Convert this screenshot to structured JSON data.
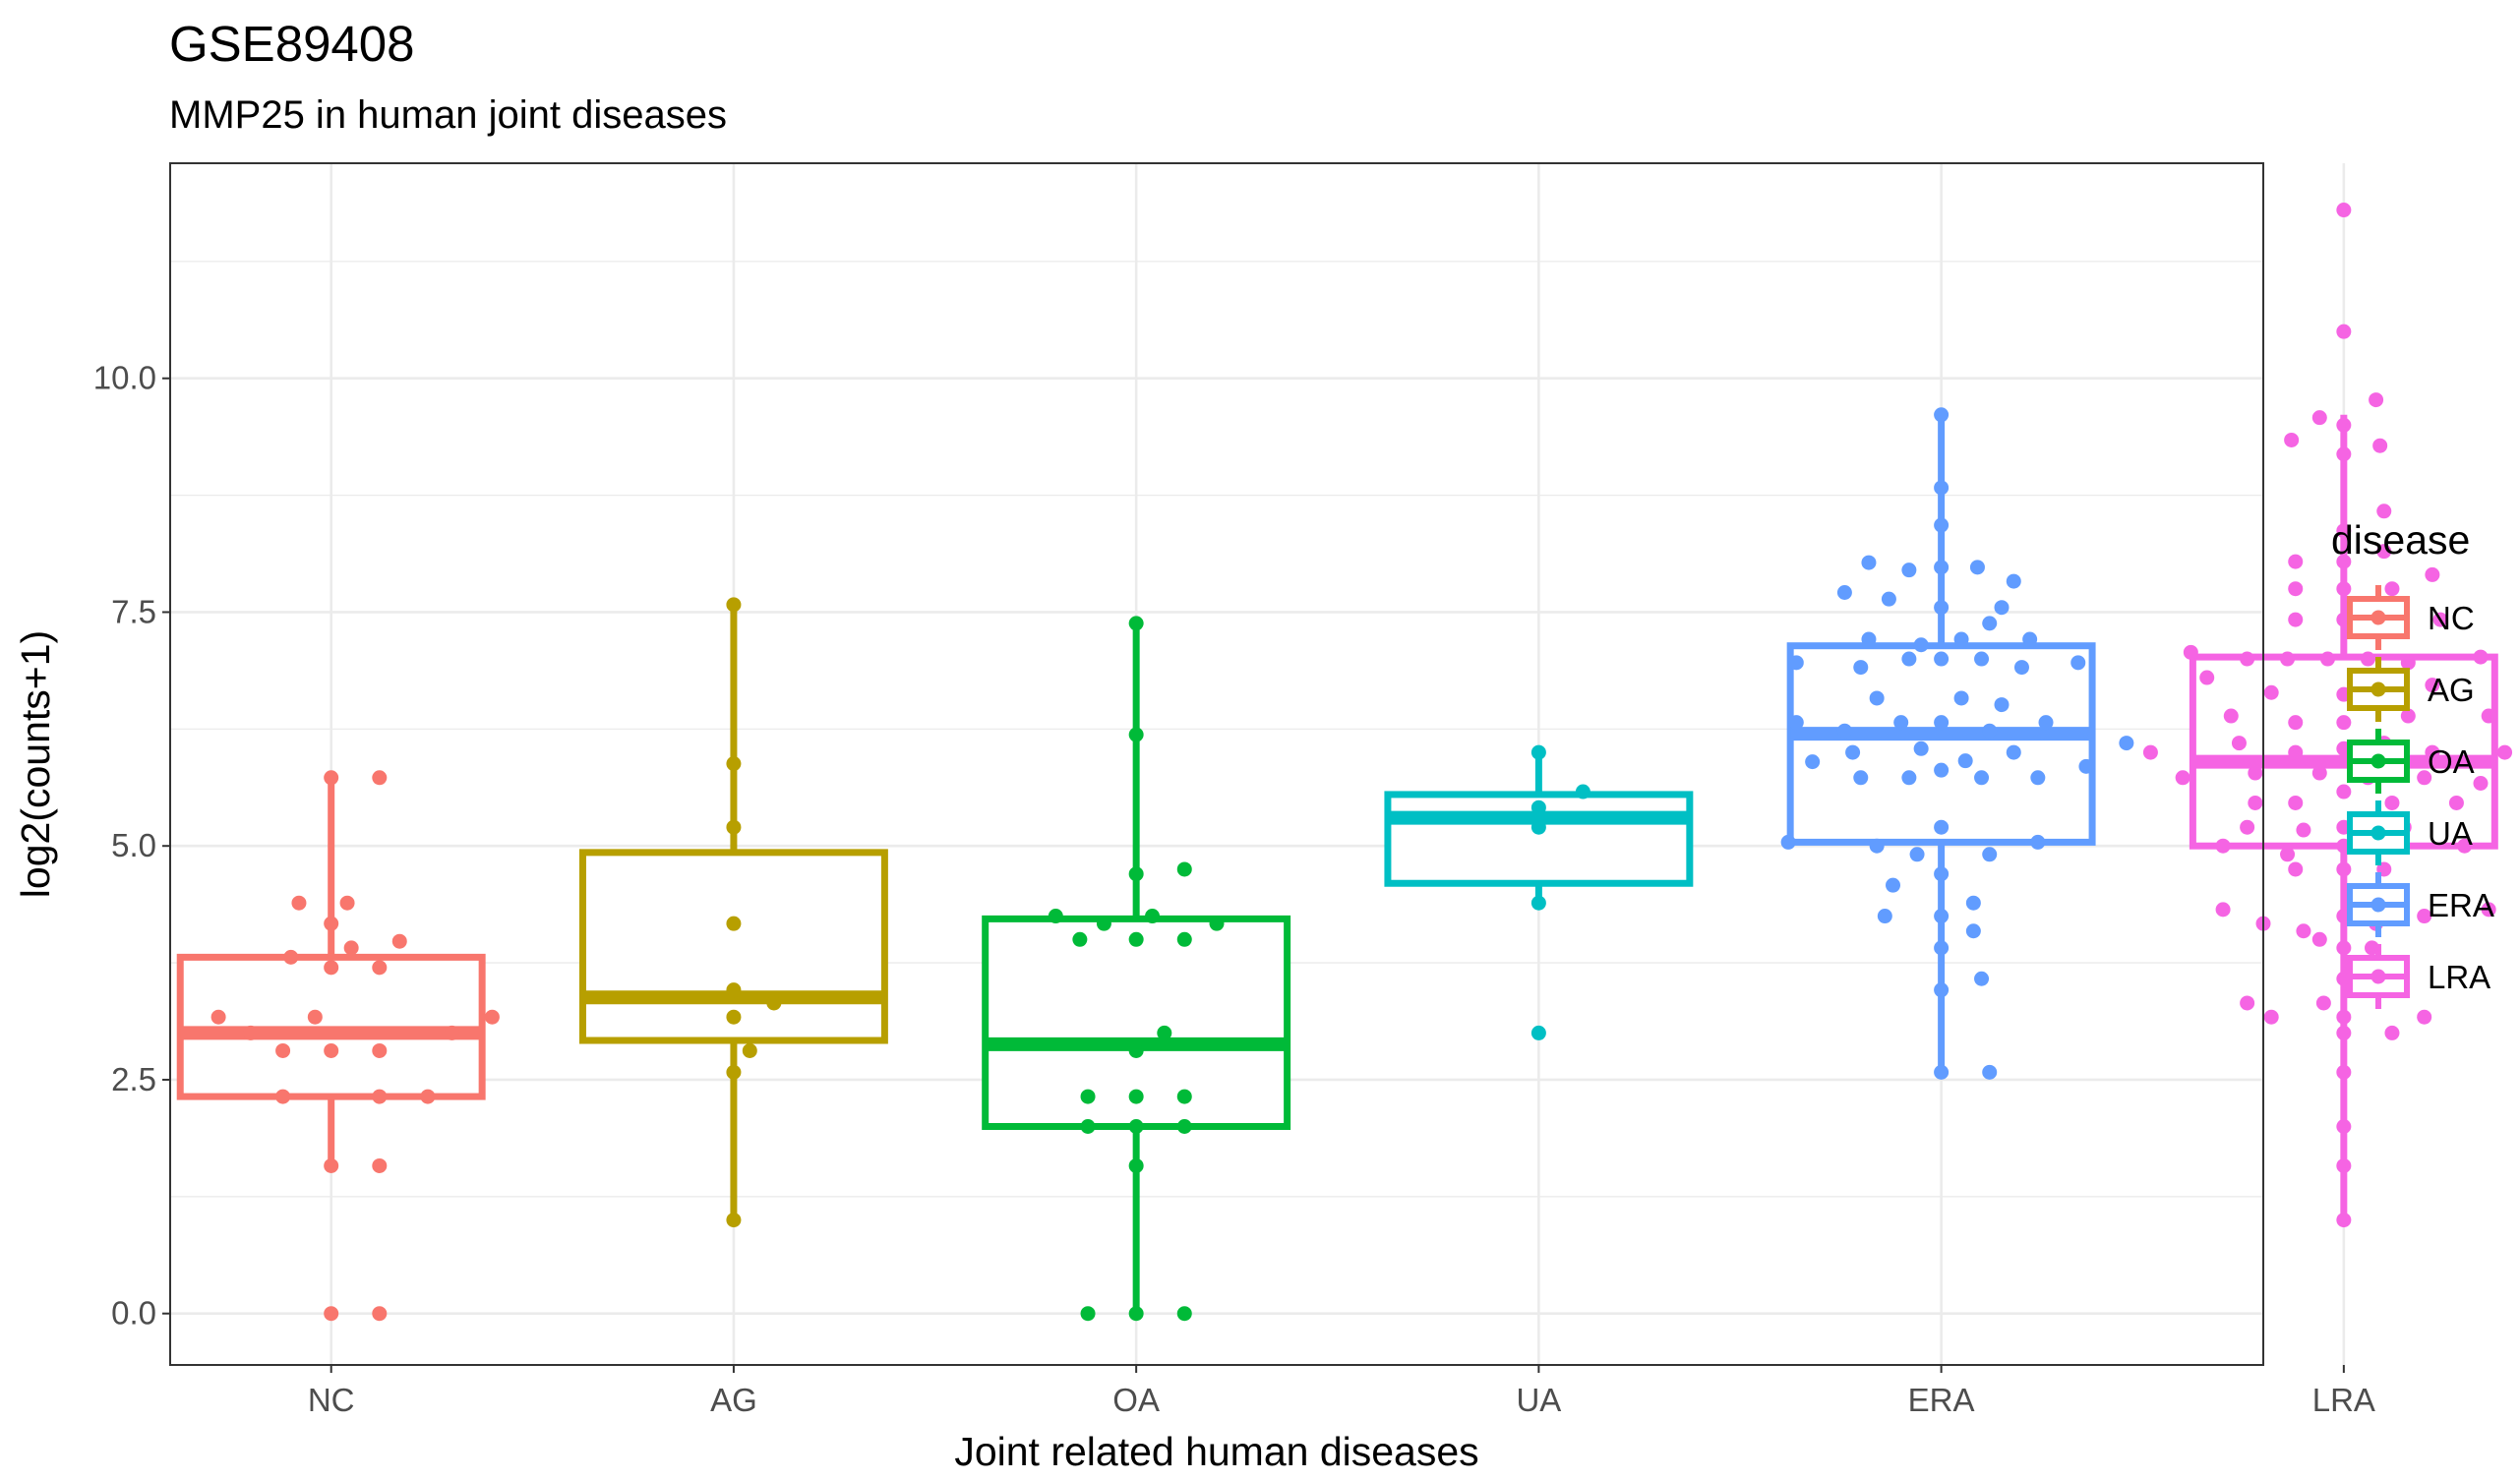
{
  "chart_data": {
    "type": "box",
    "title": "GSE89408",
    "subtitle": "MMP25 in human joint diseases",
    "xlabel": "Joint related human diseases",
    "ylabel": "log2(counts+1)",
    "ylim": [
      -0.55,
      12.3
    ],
    "yticks": [
      0.0,
      2.5,
      5.0,
      7.5,
      10.0
    ],
    "ytick_labels": [
      "0.0",
      "2.5",
      "5.0",
      "7.5",
      "10.0"
    ],
    "grid": true,
    "legend_title": "disease",
    "legend_position": "right",
    "categories": [
      "NC",
      "AG",
      "OA",
      "UA",
      "ERA",
      "LRA"
    ],
    "series": [
      {
        "name": "NC",
        "color": "#F8766D",
        "box": {
          "lower_whisker": 1.58,
          "q1": 2.32,
          "median": 3.0,
          "q3": 3.81,
          "upper_whisker": 5.73
        },
        "points": [
          [
            0.0,
            5.73
          ],
          [
            0.12,
            5.73
          ],
          [
            -0.08,
            4.39
          ],
          [
            0.04,
            4.39
          ],
          [
            0.0,
            4.17
          ],
          [
            0.05,
            3.91
          ],
          [
            0.17,
            3.98
          ],
          [
            -0.1,
            3.81
          ],
          [
            0.0,
            3.7
          ],
          [
            0.12,
            3.7
          ],
          [
            -0.28,
            3.17
          ],
          [
            -0.04,
            3.17
          ],
          [
            0.4,
            3.17
          ],
          [
            -0.2,
            3.0
          ],
          [
            0.3,
            3.0
          ],
          [
            -0.12,
            2.81
          ],
          [
            0.0,
            2.81
          ],
          [
            0.12,
            2.81
          ],
          [
            -0.12,
            2.32
          ],
          [
            0.12,
            2.32
          ],
          [
            0.24,
            2.32
          ],
          [
            0.0,
            1.58
          ],
          [
            0.12,
            1.58
          ],
          [
            0.0,
            0.0
          ],
          [
            0.12,
            0.0
          ]
        ]
      },
      {
        "name": "AG",
        "color": "#B79F00",
        "box": {
          "lower_whisker": 1.0,
          "q1": 2.92,
          "median": 3.38,
          "q3": 4.93,
          "upper_whisker": 7.58
        },
        "points": [
          [
            0.0,
            7.58
          ],
          [
            0.0,
            5.88
          ],
          [
            0.0,
            5.2
          ],
          [
            0.0,
            4.17
          ],
          [
            0.0,
            3.46
          ],
          [
            0.1,
            3.32
          ],
          [
            0.0,
            3.17
          ],
          [
            0.04,
            2.81
          ],
          [
            0.0,
            2.58
          ],
          [
            0.0,
            1.0
          ]
        ]
      },
      {
        "name": "OA",
        "color": "#00BA38",
        "box": {
          "lower_whisker": 0.0,
          "q1": 2.0,
          "median": 2.88,
          "q3": 4.22,
          "upper_whisker": 7.38
        },
        "points": [
          [
            0.0,
            7.38
          ],
          [
            0.0,
            6.19
          ],
          [
            0.0,
            4.7
          ],
          [
            0.12,
            4.75
          ],
          [
            -0.2,
            4.25
          ],
          [
            -0.08,
            4.17
          ],
          [
            0.04,
            4.25
          ],
          [
            0.2,
            4.17
          ],
          [
            0.0,
            4.0
          ],
          [
            -0.14,
            4.0
          ],
          [
            0.12,
            4.0
          ],
          [
            0.07,
            3.0
          ],
          [
            0.0,
            2.81
          ],
          [
            -0.12,
            2.32
          ],
          [
            0.0,
            2.32
          ],
          [
            0.12,
            2.32
          ],
          [
            -0.12,
            2.0
          ],
          [
            0.0,
            2.0
          ],
          [
            0.12,
            2.0
          ],
          [
            0.0,
            1.58
          ],
          [
            -0.12,
            0.0
          ],
          [
            0.0,
            0.0
          ],
          [
            0.12,
            0.0
          ]
        ]
      },
      {
        "name": "UA",
        "color": "#00BFC4",
        "box": {
          "lower_whisker": 4.39,
          "q1": 4.6,
          "median": 5.3,
          "q3": 5.55,
          "upper_whisker": 6.0
        },
        "points": [
          [
            0.0,
            6.0
          ],
          [
            0.11,
            5.58
          ],
          [
            0.0,
            5.41
          ],
          [
            0.0,
            5.2
          ],
          [
            0.0,
            4.39
          ],
          [
            0.0,
            3.0
          ]
        ]
      },
      {
        "name": "ERA",
        "color": "#619CFF",
        "box": {
          "lower_whisker": 2.58,
          "q1": 5.04,
          "median": 6.2,
          "q3": 7.14,
          "upper_whisker": 9.61
        },
        "points": [
          [
            0.0,
            9.61
          ],
          [
            0.0,
            8.83
          ],
          [
            0.0,
            8.43
          ],
          [
            0.0,
            7.98
          ],
          [
            -0.18,
            8.03
          ],
          [
            -0.08,
            7.95
          ],
          [
            0.09,
            7.98
          ],
          [
            -0.24,
            7.71
          ],
          [
            0.18,
            7.83
          ],
          [
            -0.13,
            7.64
          ],
          [
            0.0,
            7.55
          ],
          [
            0.15,
            7.55
          ],
          [
            0.12,
            7.38
          ],
          [
            -0.18,
            7.21
          ],
          [
            -0.05,
            7.15
          ],
          [
            0.05,
            7.21
          ],
          [
            0.22,
            7.21
          ],
          [
            -0.36,
            6.96
          ],
          [
            -0.2,
            6.91
          ],
          [
            -0.08,
            7.0
          ],
          [
            0.0,
            7.0
          ],
          [
            0.1,
            7.0
          ],
          [
            0.2,
            6.91
          ],
          [
            0.34,
            6.96
          ],
          [
            -0.16,
            6.58
          ],
          [
            0.05,
            6.58
          ],
          [
            0.15,
            6.51
          ],
          [
            -0.36,
            6.32
          ],
          [
            -0.24,
            6.23
          ],
          [
            -0.1,
            6.32
          ],
          [
            0.0,
            6.32
          ],
          [
            0.12,
            6.23
          ],
          [
            0.26,
            6.32
          ],
          [
            -0.22,
            6.0
          ],
          [
            -0.05,
            6.04
          ],
          [
            0.06,
            5.91
          ],
          [
            0.18,
            6.0
          ],
          [
            0.46,
            6.1
          ],
          [
            -0.32,
            5.9
          ],
          [
            -0.2,
            5.73
          ],
          [
            -0.08,
            5.73
          ],
          [
            0.0,
            5.81
          ],
          [
            0.1,
            5.73
          ],
          [
            0.24,
            5.73
          ],
          [
            0.36,
            5.85
          ],
          [
            -0.38,
            5.04
          ],
          [
            -0.16,
            5.0
          ],
          [
            -0.06,
            4.91
          ],
          [
            0.0,
            5.2
          ],
          [
            0.12,
            4.91
          ],
          [
            0.24,
            5.04
          ],
          [
            0.0,
            4.7
          ],
          [
            -0.12,
            4.58
          ],
          [
            0.08,
            4.39
          ],
          [
            -0.14,
            4.25
          ],
          [
            0.0,
            4.25
          ],
          [
            0.08,
            4.09
          ],
          [
            0.0,
            3.91
          ],
          [
            0.1,
            3.58
          ],
          [
            0.0,
            3.46
          ],
          [
            0.0,
            2.58
          ],
          [
            0.12,
            2.58
          ]
        ]
      },
      {
        "name": "LRA",
        "color": "#F564E3",
        "box": {
          "lower_whisker": 1.0,
          "q1": 5.0,
          "median": 5.9,
          "q3": 7.02,
          "upper_whisker": 9.61
        },
        "points": [
          [
            0.0,
            11.8
          ],
          [
            0.0,
            10.5
          ],
          [
            0.08,
            9.77
          ],
          [
            -0.06,
            9.58
          ],
          [
            0.0,
            9.5
          ],
          [
            -0.13,
            9.34
          ],
          [
            0.0,
            9.19
          ],
          [
            0.09,
            9.28
          ],
          [
            0.1,
            8.58
          ],
          [
            0.0,
            8.37
          ],
          [
            -0.12,
            8.04
          ],
          [
            0.0,
            8.04
          ],
          [
            0.1,
            8.15
          ],
          [
            0.22,
            7.9
          ],
          [
            -0.12,
            7.75
          ],
          [
            0.0,
            7.75
          ],
          [
            0.12,
            7.75
          ],
          [
            -0.12,
            7.42
          ],
          [
            0.0,
            7.42
          ],
          [
            0.1,
            7.42
          ],
          [
            0.24,
            7.42
          ],
          [
            -0.38,
            7.07
          ],
          [
            -0.24,
            7.0
          ],
          [
            -0.14,
            7.0
          ],
          [
            -0.04,
            7.0
          ],
          [
            0.06,
            7.0
          ],
          [
            0.16,
            6.96
          ],
          [
            0.34,
            7.02
          ],
          [
            -0.34,
            6.8
          ],
          [
            -0.18,
            6.64
          ],
          [
            0.0,
            6.62
          ],
          [
            0.08,
            6.8
          ],
          [
            0.22,
            6.72
          ],
          [
            -0.28,
            6.39
          ],
          [
            -0.12,
            6.32
          ],
          [
            0.0,
            6.32
          ],
          [
            0.16,
            6.39
          ],
          [
            0.36,
            6.39
          ],
          [
            0.55,
            6.1
          ],
          [
            -0.48,
            6.0
          ],
          [
            -0.26,
            6.1
          ],
          [
            -0.12,
            6.0
          ],
          [
            0.0,
            6.04
          ],
          [
            0.1,
            6.1
          ],
          [
            0.22,
            6.0
          ],
          [
            0.4,
            6.0
          ],
          [
            -0.4,
            5.73
          ],
          [
            -0.22,
            5.78
          ],
          [
            -0.06,
            5.78
          ],
          [
            0.06,
            5.73
          ],
          [
            0.2,
            5.73
          ],
          [
            0.34,
            5.67
          ],
          [
            -0.22,
            5.46
          ],
          [
            -0.12,
            5.46
          ],
          [
            0.0,
            5.58
          ],
          [
            0.12,
            5.46
          ],
          [
            0.28,
            5.46
          ],
          [
            -0.24,
            5.2
          ],
          [
            -0.1,
            5.17
          ],
          [
            0.0,
            5.2
          ],
          [
            0.15,
            5.2
          ],
          [
            -0.3,
            5.0
          ],
          [
            -0.14,
            4.91
          ],
          [
            0.0,
            5.0
          ],
          [
            0.12,
            5.0
          ],
          [
            0.3,
            5.0
          ],
          [
            -0.12,
            4.75
          ],
          [
            0.0,
            4.75
          ],
          [
            0.1,
            4.75
          ],
          [
            -0.3,
            4.32
          ],
          [
            -0.2,
            4.17
          ],
          [
            -0.1,
            4.09
          ],
          [
            0.0,
            4.25
          ],
          [
            0.08,
            4.17
          ],
          [
            0.2,
            4.25
          ],
          [
            0.36,
            4.32
          ],
          [
            -0.06,
            4.0
          ],
          [
            0.0,
            3.91
          ],
          [
            0.07,
            3.91
          ],
          [
            0.0,
            3.58
          ],
          [
            0.12,
            3.58
          ],
          [
            -0.24,
            3.32
          ],
          [
            -0.18,
            3.17
          ],
          [
            -0.05,
            3.32
          ],
          [
            0.0,
            3.17
          ],
          [
            0.12,
            3.0
          ],
          [
            0.2,
            3.17
          ],
          [
            0.0,
            3.0
          ],
          [
            0.0,
            2.58
          ],
          [
            0.0,
            2.0
          ],
          [
            0.0,
            1.58
          ],
          [
            0.0,
            1.0
          ]
        ]
      }
    ]
  }
}
